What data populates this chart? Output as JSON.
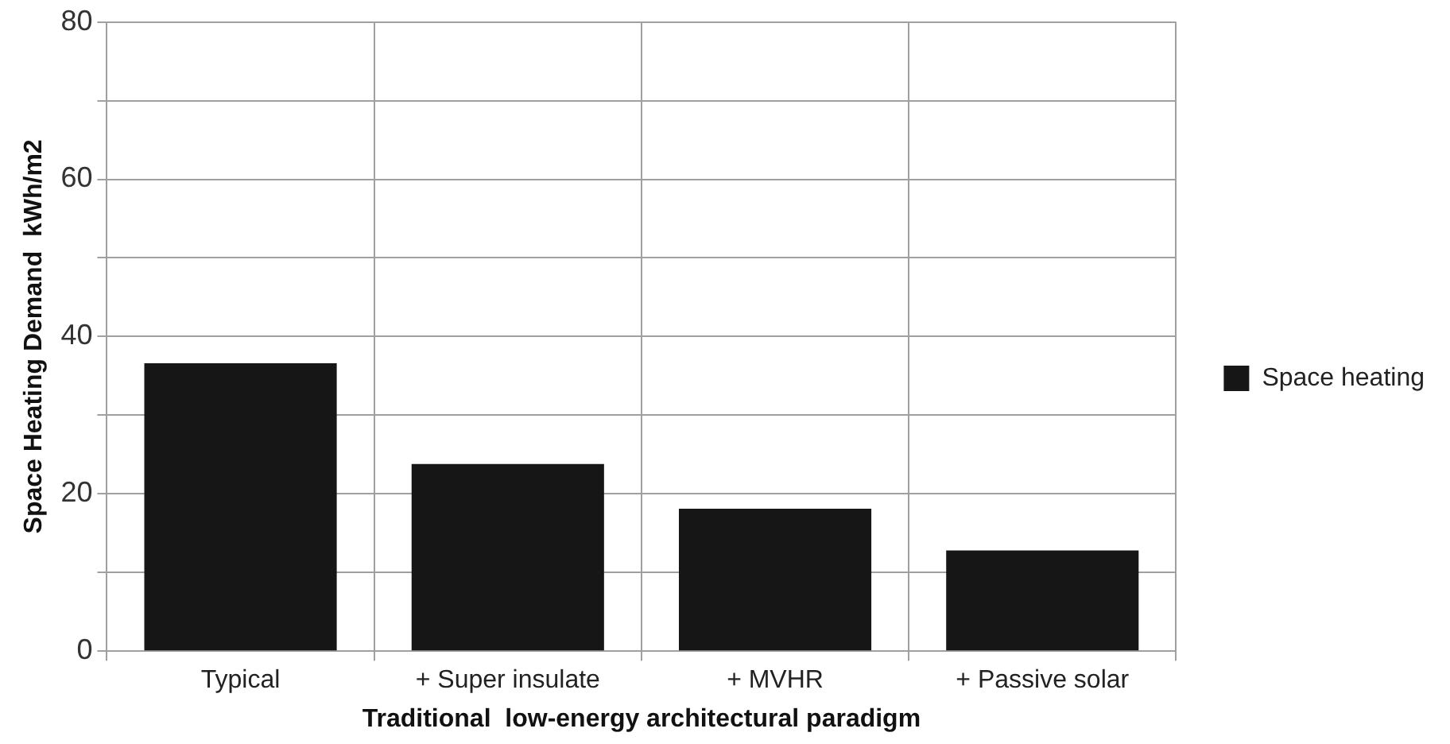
{
  "chart_data": {
    "type": "bar",
    "xlabel": "Traditional  low-energy architectural paradigm",
    "ylabel": "Space Heating Demand  kWh/m2",
    "categories": [
      "Typical",
      "+ Super insulate",
      "+ MVHR",
      "+ Passive solar"
    ],
    "series": [
      {
        "name": "Space heating",
        "color": "#161616",
        "values": [
          36.6,
          23.8,
          18.1,
          12.8
        ]
      }
    ],
    "ylim": [
      0,
      80
    ],
    "yticks": [
      0,
      {
        "value": 10,
        "label": null
      },
      20,
      {
        "value": 30,
        "label": null
      },
      40,
      {
        "value": 50,
        "label": null
      },
      60,
      {
        "value": 70,
        "label": null
      },
      80
    ],
    "grid": true,
    "legend": "right"
  }
}
